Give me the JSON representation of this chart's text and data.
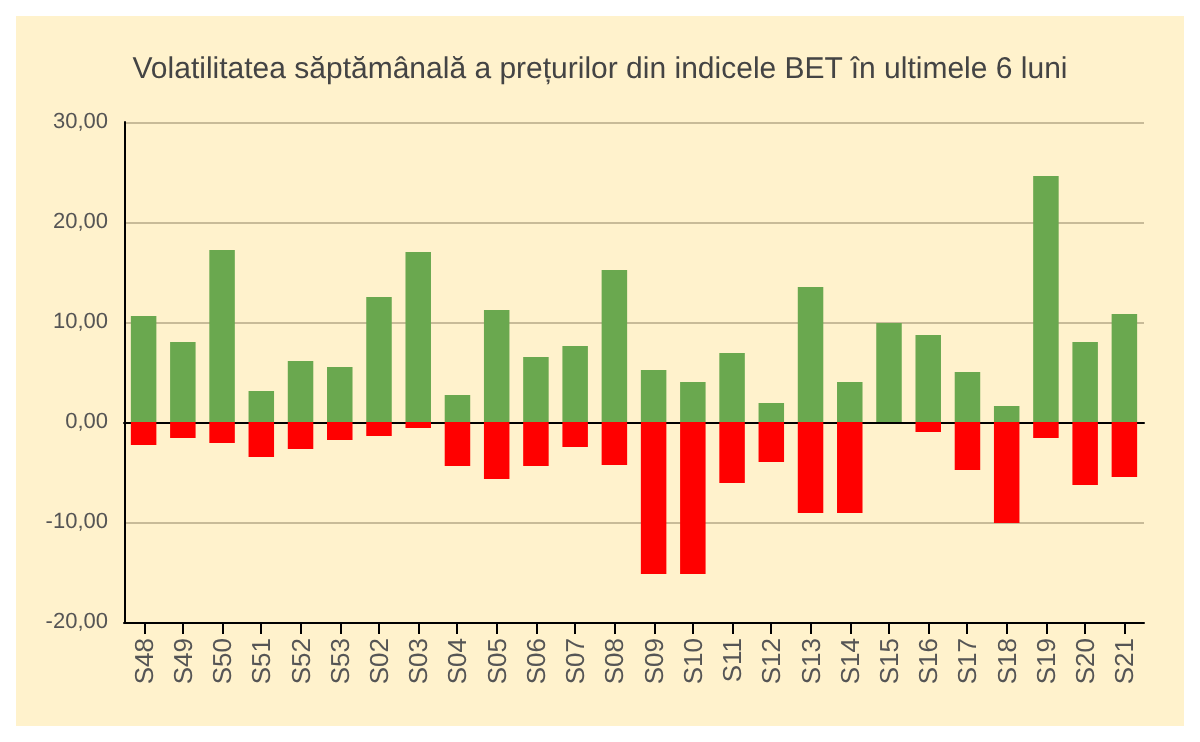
{
  "chart_data": {
    "type": "bar",
    "title": "Volatilitatea săptămânală a prețurilor din indicele BET în ultimele 6 luni",
    "categories": [
      "S48",
      "S49",
      "S50",
      "S51",
      "S52",
      "S53",
      "S02",
      "S03",
      "S04",
      "S05",
      "S06",
      "S07",
      "S08",
      "S09",
      "S10",
      "S11",
      "S12",
      "S13",
      "S14",
      "S15",
      "S16",
      "S17",
      "S18",
      "S19",
      "S20",
      "S21"
    ],
    "stacked": true,
    "series": [
      {
        "color": "#6aa84f",
        "values": [
          10.6,
          8.0,
          17.2,
          3.1,
          6.1,
          5.5,
          12.5,
          17.0,
          2.7,
          11.2,
          6.5,
          7.6,
          15.2,
          5.2,
          4.0,
          6.9,
          1.9,
          13.5,
          4.0,
          9.9,
          8.7,
          5.0,
          1.6,
          24.6,
          8.0,
          10.8
        ]
      },
      {
        "color": "#ff0000",
        "values": [
          -2.3,
          -1.6,
          -2.1,
          -3.5,
          -2.7,
          -1.8,
          -1.4,
          -0.6,
          -4.4,
          -5.7,
          -4.4,
          -2.5,
          -4.3,
          -15.2,
          -15.2,
          -6.1,
          -4.0,
          -9.1,
          -9.1,
          0,
          -1.0,
          -4.8,
          -10.1,
          -1.6,
          -6.3,
          -5.5
        ]
      }
    ],
    "ylim": [
      -20,
      30
    ],
    "yticks": [
      {
        "value": -20,
        "label": "-20,00"
      },
      {
        "value": -10,
        "label": "-10,00"
      },
      {
        "value": 0,
        "label": "0,00"
      },
      {
        "value": 10,
        "label": "10,00"
      },
      {
        "value": 20,
        "label": "20,00"
      },
      {
        "value": 30,
        "label": "30,00"
      }
    ],
    "grid": "y"
  }
}
